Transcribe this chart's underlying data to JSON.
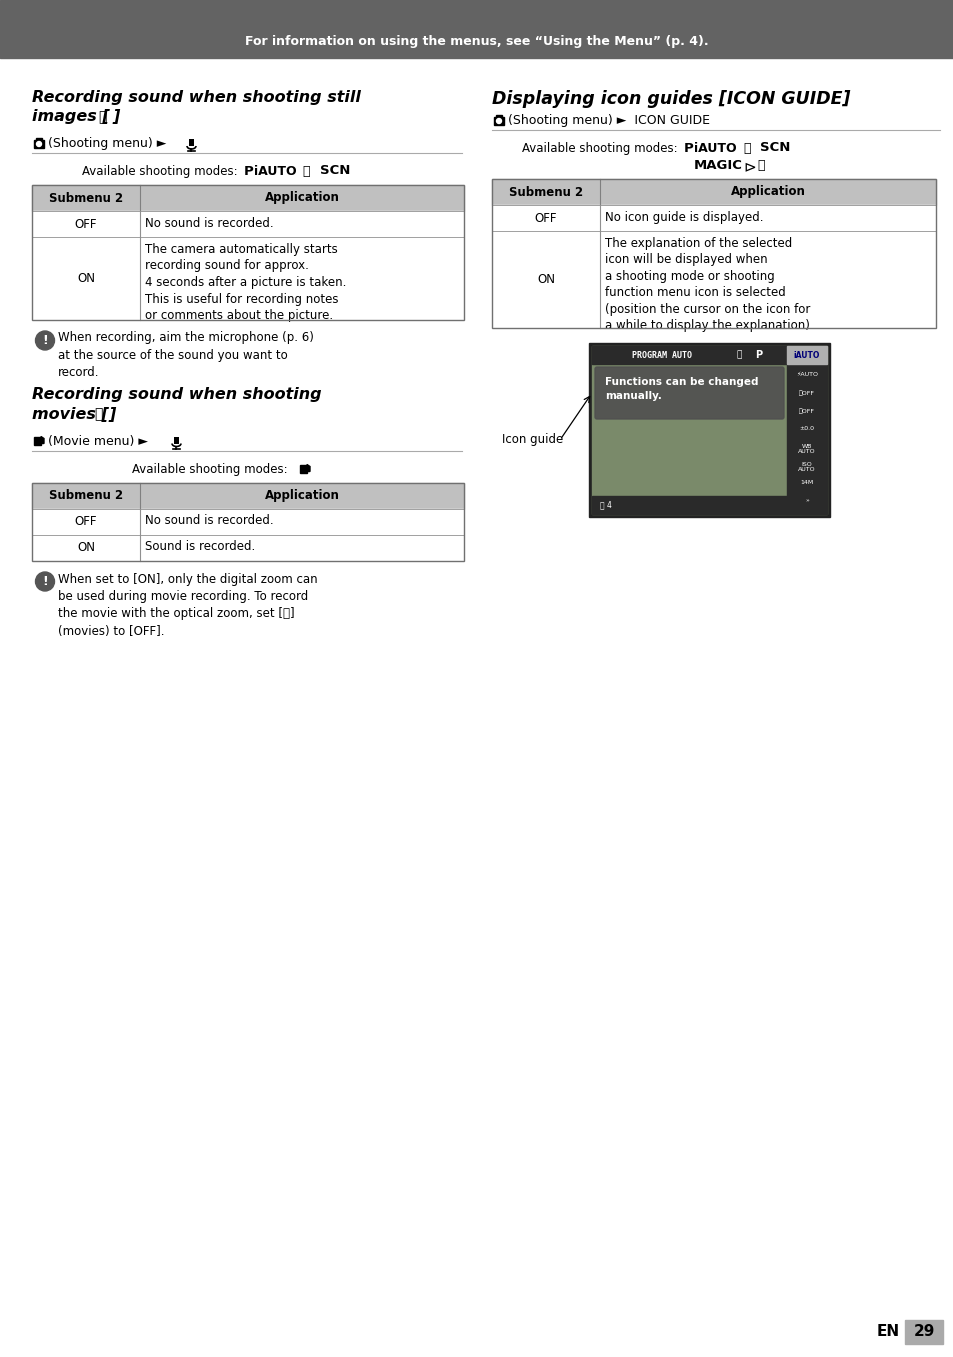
{
  "header_bg": "#666666",
  "header_text": "For information on using the menus, see “Using the Menu” (p. 4).",
  "header_text_color": "#ffffff",
  "page_bg": "#ffffff",
  "left_col1": {
    "title1": "Recording sound when shooting still",
    "title2": "images [",
    "title2_mic": true,
    "title2_end": "]",
    "menu_text": "(Shooting menu) ►",
    "avail_text": "Available shooting modes:",
    "avail_bold": [
      "P",
      "iAUTO",
      "SCN"
    ],
    "table_rows": [
      {
        "col1": "OFF",
        "col2": "No sound is recorded."
      },
      {
        "col1": "ON",
        "col2": "The camera automatically starts\nrecording sound for approx.\n4 seconds after a picture is taken.\nThis is useful for recording notes\nor comments about the picture."
      }
    ],
    "note": "When recording, aim the microphone (p. 6)\nat the source of the sound you want to\nrecord."
  },
  "left_col2": {
    "title1": "Recording sound when shooting",
    "title2": "movies [",
    "title2_mic": true,
    "title2_end": "]",
    "menu_text": "(Movie menu) ►",
    "avail_text": "Available shooting modes:",
    "table_rows": [
      {
        "col1": "OFF",
        "col2": "No sound is recorded."
      },
      {
        "col1": "ON",
        "col2": "Sound is recorded."
      }
    ],
    "note": "When set to [ON], only the digital zoom can\nbe used during movie recording. To record\nthe movie with the optical zoom, set [🎤]\n(movies) to [OFF]."
  },
  "right_col": {
    "title": "Displaying icon guides [ICON GUIDE]",
    "menu_text": "(Shooting menu) ► ICON GUIDE",
    "avail_text": "Available shooting modes:",
    "avail_line1_bold": [
      "P",
      "iAUTO",
      "SCN"
    ],
    "avail_line2_bold": [
      "MAGIC"
    ],
    "table_rows": [
      {
        "col1": "OFF",
        "col2": "No icon guide is displayed."
      },
      {
        "col1": "ON",
        "col2": "The explanation of the selected\nicon will be displayed when\na shooting mode or shooting\nfunction menu icon is selected\n(position the cursor on the icon for\na while to display the explanation)."
      }
    ],
    "icon_guide_label": "Icon guide"
  },
  "footer_en": "EN",
  "footer_page": "29"
}
